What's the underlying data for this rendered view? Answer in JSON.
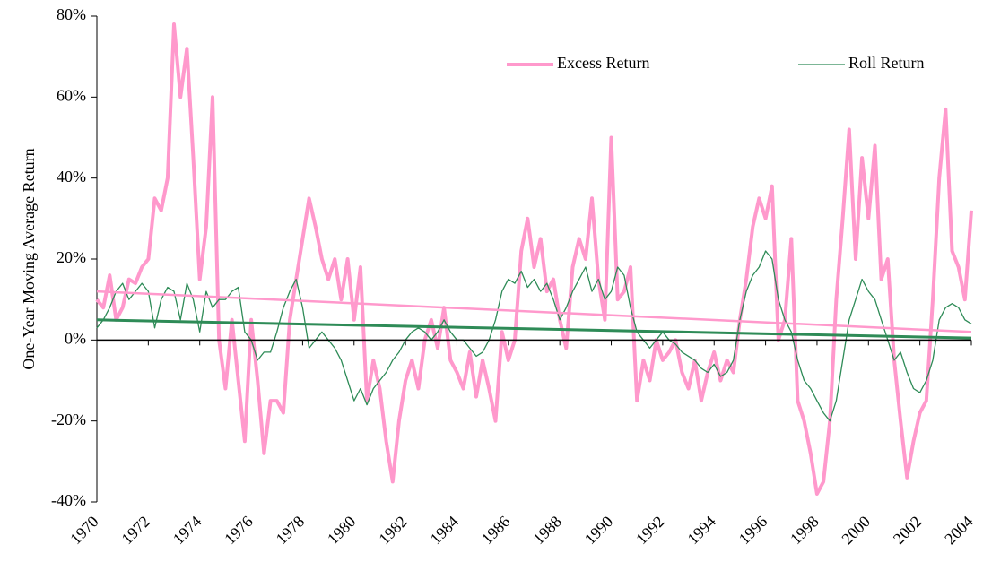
{
  "chart_data": {
    "type": "line",
    "y_label": "One-Year Moving Average Return",
    "x": [
      1970,
      1970.25,
      1970.5,
      1970.75,
      1971,
      1971.25,
      1971.5,
      1971.75,
      1972,
      1972.25,
      1972.5,
      1972.75,
      1973,
      1973.25,
      1973.5,
      1973.75,
      1974,
      1974.25,
      1974.5,
      1974.75,
      1975,
      1975.25,
      1975.5,
      1975.75,
      1976,
      1976.25,
      1976.5,
      1976.75,
      1977,
      1977.25,
      1977.5,
      1977.75,
      1978,
      1978.25,
      1978.5,
      1978.75,
      1979,
      1979.25,
      1979.5,
      1979.75,
      1980,
      1980.25,
      1980.5,
      1980.75,
      1981,
      1981.25,
      1981.5,
      1981.75,
      1982,
      1982.25,
      1982.5,
      1982.75,
      1983,
      1983.25,
      1983.5,
      1983.75,
      1984,
      1984.25,
      1984.5,
      1984.75,
      1985,
      1985.25,
      1985.5,
      1985.75,
      1986,
      1986.25,
      1986.5,
      1986.75,
      1987,
      1987.25,
      1987.5,
      1987.75,
      1988,
      1988.25,
      1988.5,
      1988.75,
      1989,
      1989.25,
      1989.5,
      1989.75,
      1990,
      1990.25,
      1990.5,
      1990.75,
      1991,
      1991.25,
      1991.5,
      1991.75,
      1992,
      1992.25,
      1992.5,
      1992.75,
      1993,
      1993.25,
      1993.5,
      1993.75,
      1994,
      1994.25,
      1994.5,
      1994.75,
      1995,
      1995.25,
      1995.5,
      1995.75,
      1996,
      1996.25,
      1996.5,
      1996.75,
      1997,
      1997.25,
      1997.5,
      1997.75,
      1998,
      1998.25,
      1998.5,
      1998.75,
      1999,
      1999.25,
      1999.5,
      1999.75,
      2000,
      2000.25,
      2000.5,
      2000.75,
      2001,
      2001.25,
      2001.5,
      2001.75,
      2002,
      2002.25,
      2002.5,
      2002.75,
      2003,
      2003.25,
      2003.5,
      2003.75,
      2004
    ],
    "series": [
      {
        "name": "Excess Return",
        "color": "#ff99cc",
        "width": 4,
        "values": [
          10,
          8,
          16,
          5,
          8,
          15,
          14,
          18,
          20,
          35,
          32,
          40,
          78,
          60,
          72,
          45,
          15,
          28,
          60,
          0,
          -12,
          5,
          -10,
          -25,
          5,
          -10,
          -28,
          -15,
          -15,
          -18,
          5,
          15,
          25,
          35,
          28,
          20,
          15,
          20,
          10,
          20,
          5,
          18,
          -15,
          -5,
          -12,
          -25,
          -35,
          -20,
          -10,
          -5,
          -12,
          0,
          5,
          -2,
          8,
          -5,
          -8,
          -12,
          -3,
          -14,
          -5,
          -12,
          -20,
          2,
          -5,
          0,
          22,
          30,
          18,
          25,
          12,
          15,
          5,
          -2,
          18,
          25,
          20,
          35,
          15,
          5,
          50,
          10,
          12,
          18,
          -15,
          -5,
          -10,
          0,
          -5,
          -3,
          0,
          -8,
          -12,
          -5,
          -15,
          -8,
          -3,
          -10,
          -5,
          -8,
          5,
          15,
          28,
          35,
          30,
          38,
          0,
          5,
          25,
          -15,
          -20,
          -28,
          -38,
          -35,
          -20,
          10,
          30,
          52,
          20,
          45,
          30,
          48,
          15,
          20,
          -5,
          -20,
          -34,
          -25,
          -18,
          -15,
          10,
          40,
          57,
          22,
          18,
          10,
          32
        ]
      },
      {
        "name": "Roll Return",
        "color": "#2e8b57",
        "width": 1.3,
        "values": [
          3,
          5,
          8,
          12,
          14,
          10,
          12,
          14,
          12,
          3,
          10,
          13,
          12,
          5,
          14,
          10,
          2,
          12,
          8,
          10,
          10,
          12,
          13,
          2,
          0,
          -5,
          -3,
          -3,
          2,
          8,
          12,
          15,
          8,
          -2,
          0,
          2,
          0,
          -2,
          -5,
          -10,
          -15,
          -12,
          -16,
          -12,
          -10,
          -8,
          -5,
          -3,
          0,
          2,
          3,
          2,
          0,
          2,
          5,
          2,
          0,
          0,
          -2,
          -4,
          -3,
          0,
          5,
          12,
          15,
          14,
          17,
          13,
          15,
          12,
          14,
          10,
          5,
          8,
          12,
          15,
          18,
          12,
          15,
          10,
          12,
          18,
          16,
          8,
          2,
          0,
          -2,
          0,
          2,
          0,
          -1,
          -3,
          -4,
          -5,
          -7,
          -8,
          -6,
          -9,
          -8,
          -5,
          5,
          12,
          16,
          18,
          22,
          20,
          10,
          5,
          2,
          -5,
          -10,
          -12,
          -15,
          -18,
          -20,
          -15,
          -5,
          5,
          10,
          15,
          12,
          10,
          5,
          0,
          -5,
          -3,
          -8,
          -12,
          -13,
          -10,
          -5,
          5,
          8,
          9,
          8,
          5,
          4
        ]
      }
    ],
    "trend_lines": [
      {
        "color": "#ff99cc",
        "width": 2.5,
        "x": [
          1970,
          2004
        ],
        "values": [
          12,
          2
        ]
      },
      {
        "color": "#2e8b57",
        "width": 3,
        "x": [
          1970,
          2004
        ],
        "values": [
          5,
          0.5
        ]
      }
    ],
    "xlim": [
      1970,
      2004
    ],
    "xticks": [
      1970,
      1972,
      1974,
      1976,
      1978,
      1980,
      1982,
      1984,
      1986,
      1988,
      1990,
      1992,
      1994,
      1996,
      1998,
      2000,
      2002,
      2004
    ],
    "ylim": [
      -40,
      80
    ],
    "yticks": [
      {
        "value": -40,
        "label": "-40%"
      },
      {
        "value": -20,
        "label": "-20%"
      },
      {
        "value": 0,
        "label": "0%"
      },
      {
        "value": 20,
        "label": "20%"
      },
      {
        "value": 40,
        "label": "40%"
      },
      {
        "value": 60,
        "label": "60%"
      },
      {
        "value": 80,
        "label": "80%"
      }
    ],
    "legend": "top-right",
    "grid": false
  }
}
